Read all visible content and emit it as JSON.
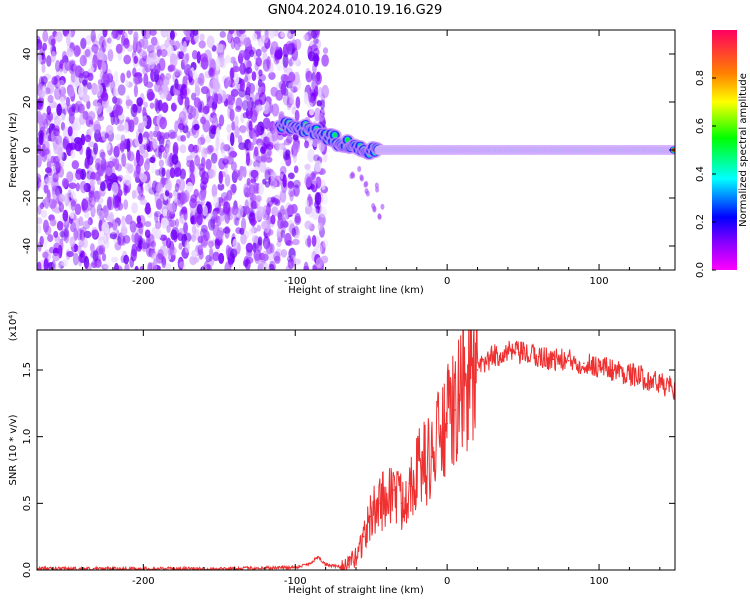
{
  "title": "GN04.2024.010.19.16.G29",
  "chart_data": [
    {
      "type": "heatmap",
      "xlabel": "Height of straight line (km)",
      "ylabel": "Frequency (Hz)",
      "xlim": [
        -270,
        150
      ],
      "ylim": [
        -50,
        50
      ],
      "xticks": [
        -200,
        -100,
        0,
        100
      ],
      "yticks": [
        -40,
        -20,
        0,
        20,
        40
      ],
      "colorbar": {
        "label": "Normalized spectral amplitude",
        "range": [
          0,
          1
        ],
        "ticks": [
          "0.0",
          "0.2",
          "0.4",
          "0.6",
          "0.8"
        ],
        "colormap": [
          "#ff00ff",
          "#8000ff",
          "#0000ff",
          "#00ffff",
          "#00ff00",
          "#ffff00",
          "#ff8000",
          "#ff0000"
        ]
      },
      "features": {
        "noise_region_x": [
          -270,
          -80
        ],
        "noise_gap_x": [
          -98,
          -93
        ],
        "line_track": [
          [
            -110,
            10
          ],
          [
            -95,
            9
          ],
          [
            -80,
            6
          ],
          [
            -70,
            3
          ],
          [
            -50,
            0
          ],
          [
            0,
            0
          ],
          [
            150,
            0
          ]
        ],
        "faint_tail": [
          [
            -60,
            -10
          ],
          [
            -50,
            -17
          ],
          [
            -45,
            -25
          ]
        ]
      }
    },
    {
      "type": "line",
      "xlabel": "Height of straight line (km)",
      "ylabel": "SNR (10 * v/v)",
      "scale_label": "(x10⁴)",
      "xlim": [
        -270,
        150
      ],
      "ylim": [
        0,
        1.8
      ],
      "xticks": [
        -200,
        -100,
        0,
        100
      ],
      "yticks": [
        "0.0",
        "0.5",
        "1.0",
        "1.5"
      ],
      "series": [
        {
          "color": "#ee3030",
          "x": [
            -270,
            -200,
            -150,
            -100,
            -90,
            -85,
            -80,
            -70,
            -65,
            -60,
            -55,
            -50,
            -45,
            -40,
            -35,
            -30,
            -25,
            -20,
            -15,
            -10,
            -5,
            0,
            5,
            10,
            15,
            20,
            25,
            30,
            35,
            40,
            45,
            50,
            60,
            70,
            80,
            90,
            100,
            110,
            120,
            130,
            140,
            150
          ],
          "y": [
            0.01,
            0.01,
            0.01,
            0.02,
            0.05,
            0.1,
            0.04,
            0.02,
            0.04,
            0.1,
            0.25,
            0.4,
            0.5,
            0.55,
            0.6,
            0.5,
            0.65,
            0.75,
            0.8,
            0.85,
            1.0,
            1.1,
            1.2,
            1.35,
            1.45,
            1.5,
            1.55,
            1.6,
            1.62,
            1.63,
            1.63,
            1.62,
            1.6,
            1.58,
            1.57,
            1.55,
            1.53,
            1.5,
            1.47,
            1.44,
            1.4,
            1.35
          ]
        }
      ]
    }
  ]
}
